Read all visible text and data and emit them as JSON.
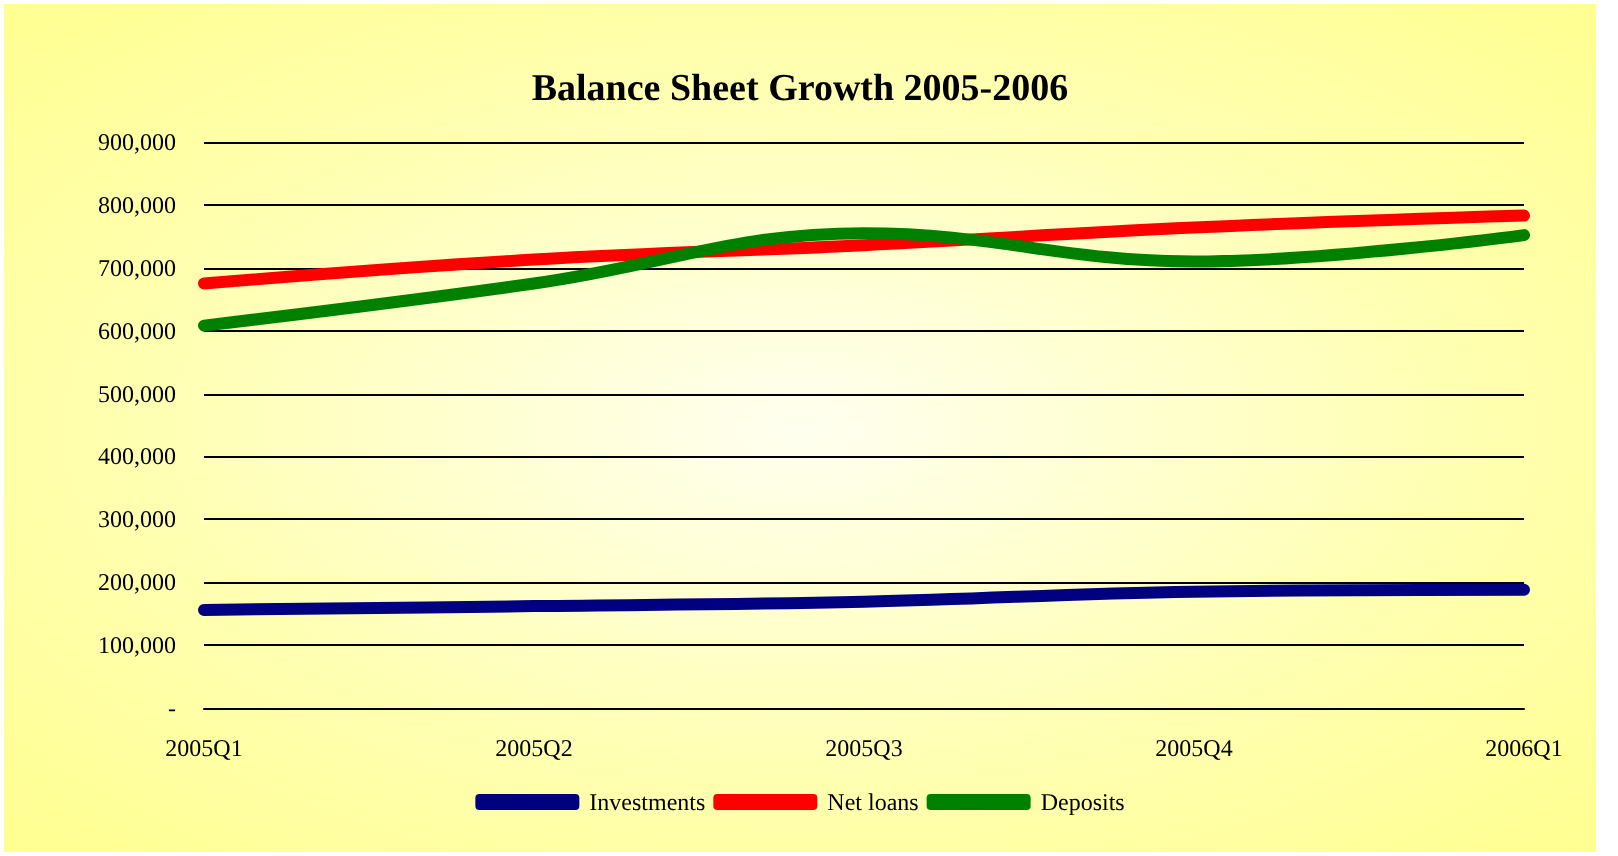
{
  "chart_data": {
    "type": "line",
    "title": "Balance Sheet Growth 2005-2006",
    "categories": [
      "2005Q1",
      "2005Q2",
      "2005Q3",
      "2005Q4",
      "2006Q1"
    ],
    "series": [
      {
        "name": "Investments",
        "color": "#000080",
        "values": [
          156000,
          162000,
          169000,
          185000,
          188000
        ]
      },
      {
        "name": "Net loans",
        "color": "#ff0000",
        "values": [
          675000,
          713000,
          736000,
          764000,
          783000
        ]
      },
      {
        "name": "Deposits",
        "color": "#008000",
        "values": [
          608000,
          675000,
          755000,
          710000,
          752000
        ]
      }
    ],
    "ylim": [
      0,
      900000
    ],
    "yticks": [
      {
        "value": 0,
        "label": "-"
      },
      {
        "value": 100000,
        "label": "100,000"
      },
      {
        "value": 200000,
        "label": "200,000"
      },
      {
        "value": 300000,
        "label": "300,000"
      },
      {
        "value": 400000,
        "label": "400,000"
      },
      {
        "value": 500000,
        "label": "500,000"
      },
      {
        "value": 600000,
        "label": "600,000"
      },
      {
        "value": 700000,
        "label": "700,000"
      },
      {
        "value": 800000,
        "label": "800,000"
      },
      {
        "value": 900000,
        "label": "900,000"
      }
    ],
    "grid": "y",
    "legend": "bottom",
    "marker": "none",
    "line_style": "solid"
  }
}
